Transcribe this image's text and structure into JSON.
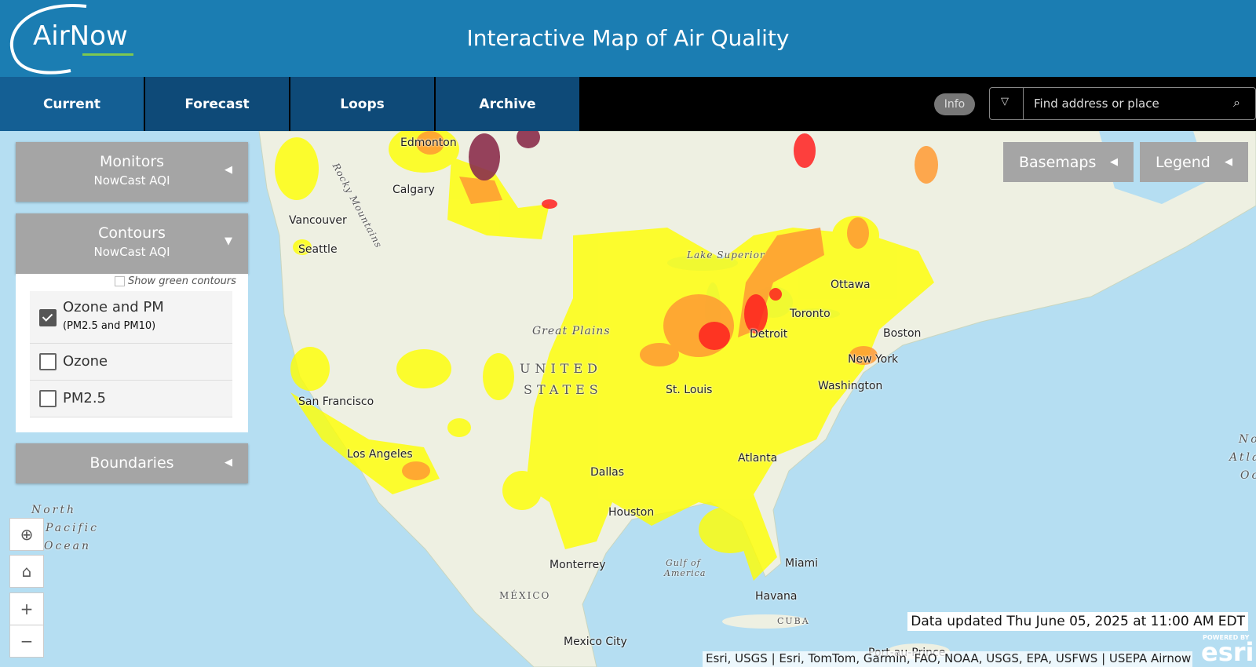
{
  "header": {
    "logo": "AirNow",
    "title": "Interactive Map of Air Quality"
  },
  "nav": {
    "tabs": [
      "Current",
      "Forecast",
      "Loops",
      "Archive"
    ],
    "info": "Info",
    "search_placeholder": "Find address or place"
  },
  "panels": {
    "monitors": {
      "title": "Monitors",
      "subtitle": "NowCast AQI"
    },
    "contours": {
      "title": "Contours",
      "subtitle": "NowCast AQI",
      "show_green": "Show green contours",
      "options": [
        {
          "label": "Ozone and PM",
          "sublabel": "(PM2.5 and PM10)",
          "checked": true
        },
        {
          "label": "Ozone",
          "checked": false
        },
        {
          "label": "PM2.5",
          "checked": false
        }
      ]
    },
    "boundaries": {
      "title": "Boundaries"
    }
  },
  "buttons": {
    "basemaps": "Basemaps",
    "legend": "Legend"
  },
  "map_labels": [
    "Edmonton",
    "Calgary",
    "Vancouver",
    "Seattle",
    "Rocky Mountains",
    "Lake Superior",
    "Ottawa",
    "Toronto",
    "Detroit",
    "Boston",
    "New York",
    "Washington",
    "Great Plains",
    "UNITED",
    "STATES",
    "St. Louis",
    "San Francisco",
    "Los Angeles",
    "Dallas",
    "Houston",
    "Atlanta",
    "Miami",
    "Monterrey",
    "Gulf of",
    "America",
    "MÉXICO",
    "Havana",
    "CUBA",
    "Mexico City",
    "Port-au-Prince",
    "North",
    "Pacific",
    "Ocean",
    "North",
    "Atlantic",
    "Ocean"
  ],
  "status": "Data updated Thu June 05, 2025 at 11:00 AM EDT",
  "attribution": {
    "text": "Esri, USGS | Esri, TomTom, Garmin, FAO, NOAA, USGS, EPA, USFWS | USEPA Airnow",
    "powered_by": "POWERED BY",
    "logo": "esri"
  }
}
